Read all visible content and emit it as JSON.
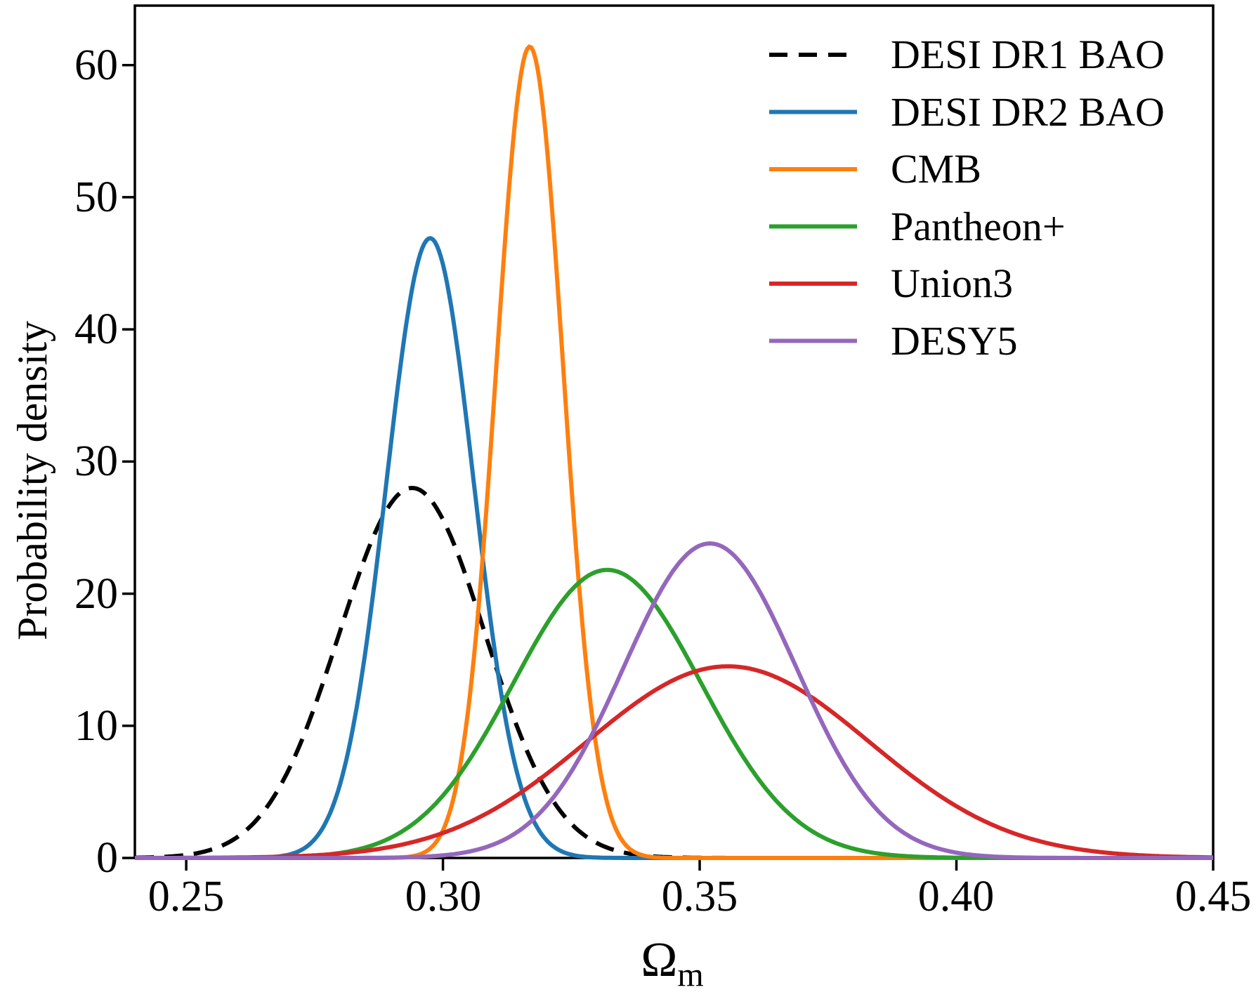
{
  "figure": {
    "ylabel": "Probability density",
    "xlabel_omega": "Ω",
    "xlabel_sub": "m"
  },
  "chart_data": {
    "type": "line",
    "title": "",
    "xlabel": "Ω_m",
    "ylabel": "Probability density",
    "xlim": [
      0.24,
      0.45
    ],
    "ylim": [
      0,
      64.5
    ],
    "grid": false,
    "legend_position": "upper right",
    "x_ticks": [
      0.25,
      0.3,
      0.35,
      0.4,
      0.45
    ],
    "x_tick_labels": [
      "0.25",
      "0.30",
      "0.35",
      "0.40",
      "0.45"
    ],
    "y_ticks": [
      0,
      10,
      20,
      30,
      40,
      50,
      60
    ],
    "y_tick_labels": [
      "0",
      "10",
      "20",
      "30",
      "40",
      "50",
      "60"
    ],
    "curve_model": "gaussian",
    "series": [
      {
        "id": "desi-dr1-bao",
        "name": "DESI DR1 BAO",
        "color": "#000000",
        "style": "dashed",
        "mean": 0.294,
        "sigma": 0.0142,
        "peak": 28.0
      },
      {
        "id": "desi-dr2-bao",
        "name": "DESI DR2 BAO",
        "color": "#1f77b4",
        "style": "solid",
        "mean": 0.2975,
        "sigma": 0.0085,
        "peak": 46.9
      },
      {
        "id": "cmb",
        "name": "CMB",
        "color": "#ff7f0e",
        "style": "solid",
        "mean": 0.3169,
        "sigma": 0.0065,
        "peak": 61.4
      },
      {
        "id": "pantheon-plus",
        "name": "Pantheon+",
        "color": "#2ca02c",
        "style": "solid",
        "mean": 0.332,
        "sigma": 0.0183,
        "peak": 21.8
      },
      {
        "id": "union3",
        "name": "Union3",
        "color": "#d62728",
        "style": "solid",
        "mean": 0.3555,
        "sigma": 0.0275,
        "peak": 14.5
      },
      {
        "id": "desy5",
        "name": "DESY5",
        "color": "#9467bd",
        "style": "solid",
        "mean": 0.352,
        "sigma": 0.0168,
        "peak": 23.8
      }
    ]
  }
}
